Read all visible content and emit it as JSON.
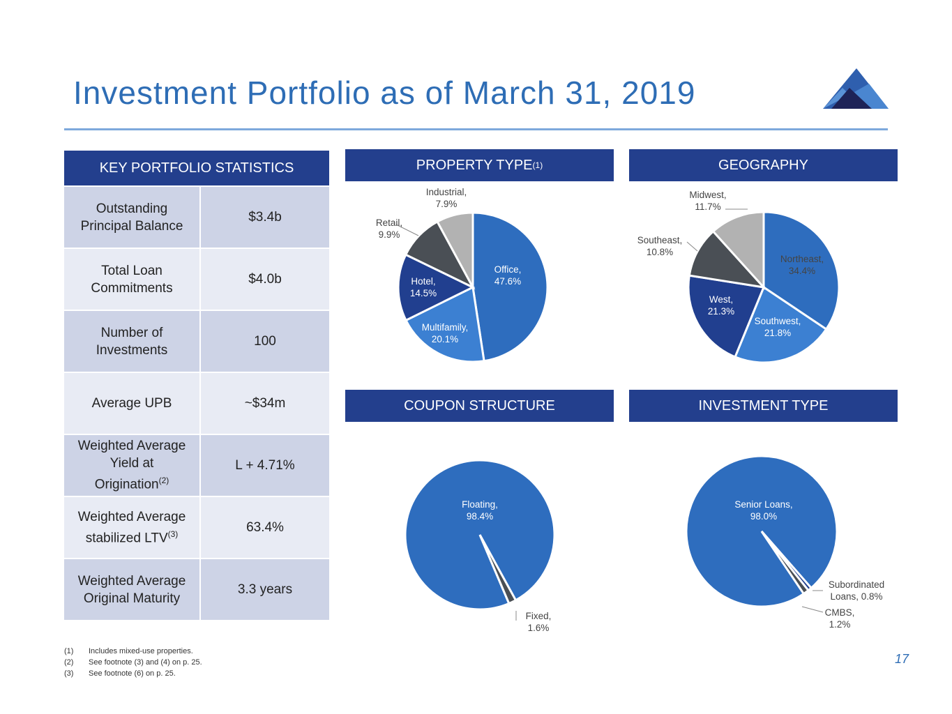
{
  "title": "Investment Portfolio as of March 31, 2019",
  "key_stats": {
    "header": "KEY PORTFOLIO STATISTICS",
    "rows": [
      {
        "label": "Outstanding Principal Balance",
        "value": "$3.4b"
      },
      {
        "label": "Total Loan Commitments",
        "value": "$4.0b"
      },
      {
        "label": "Number of Investments",
        "value": "100"
      },
      {
        "label": "Average UPB",
        "value": "~$34m"
      },
      {
        "label": "Weighted Average Yield at Origination",
        "sup": "(2)",
        "value": "L + 4.71%"
      },
      {
        "label": "Weighted Average stabilized LTV",
        "sup": "(3)",
        "value": "63.4%"
      },
      {
        "label": "Weighted Average Original Maturity",
        "value": "3.3 years"
      }
    ]
  },
  "chart_data": [
    {
      "type": "pie",
      "title": "PROPERTY TYPE",
      "title_sup": "(1)",
      "categories": [
        "Office",
        "Multifamily",
        "Hotel",
        "Retail",
        "Industrial"
      ],
      "values": [
        47.6,
        20.1,
        14.5,
        9.9,
        7.9
      ],
      "labels": [
        "Office,|47.6%",
        "Multifamily,|20.1%",
        "Hotel,|14.5%",
        "Retail,|9.9%",
        "Industrial,|7.9%"
      ],
      "colors": [
        "#2E6DBE",
        "#3C80D2",
        "#213F8F",
        "#4A4F55",
        "#B2B2B2"
      ]
    },
    {
      "type": "pie",
      "title": "GEOGRAPHY",
      "categories": [
        "Northeast",
        "Southwest",
        "West",
        "Southeast",
        "Midwest"
      ],
      "values": [
        34.4,
        21.8,
        21.3,
        10.8,
        11.7
      ],
      "labels": [
        "Northeast,|34.4%",
        "Southwest,|21.8%",
        "West,|21.3%",
        "Southeast,|10.8%",
        "Midwest,|11.7%"
      ],
      "colors": [
        "#2E6DBE",
        "#3C80D2",
        "#213F8F",
        "#4A4F55",
        "#B2B2B2"
      ]
    },
    {
      "type": "pie",
      "title": "COUPON STRUCTURE",
      "categories": [
        "Floating",
        "Fixed"
      ],
      "values": [
        98.4,
        1.6
      ],
      "labels": [
        "Floating,|98.4%",
        "Fixed,|1.6%"
      ],
      "colors": [
        "#2E6DBE",
        "#4A4F55"
      ]
    },
    {
      "type": "pie",
      "title": "INVESTMENT TYPE",
      "categories": [
        "Senior Loans",
        "Subordinated Loans",
        "CMBS"
      ],
      "values": [
        98.0,
        0.8,
        1.2
      ],
      "labels": [
        "Senior Loans,|98.0%",
        "Subordinated|Loans, 0.8%",
        "CMBS,|1.2%"
      ],
      "colors": [
        "#2E6DBE",
        "#213F8F",
        "#4A4F55"
      ]
    }
  ],
  "footnotes": [
    {
      "n": "(1)",
      "text": "Includes mixed-use properties."
    },
    {
      "n": "(2)",
      "text": "See footnote (3) and (4) on p. 25."
    },
    {
      "n": "(3)",
      "text": "See footnote (6) on p. 25."
    }
  ],
  "page_number": "17"
}
